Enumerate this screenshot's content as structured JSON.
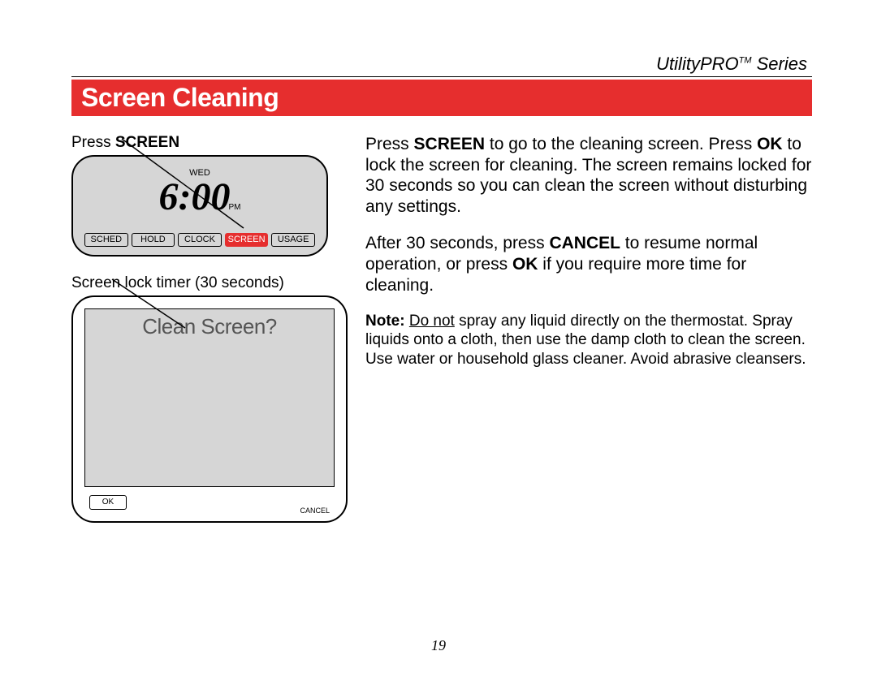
{
  "series": {
    "name": "UtilityPRO",
    "trademark": "TM",
    "suffix": " Series"
  },
  "title": "Screen Cleaning",
  "pageNumber": "19",
  "colors": {
    "accent": "#e62e2e",
    "lcd_bg": "#d6d6d6",
    "text": "#000000",
    "white": "#ffffff"
  },
  "left": {
    "caption1_prefix": "Press ",
    "caption1_bold": "SCREEN",
    "device_top": {
      "day": "WED",
      "time": "6:00",
      "period": "PM",
      "buttons": [
        "SCHED",
        "HOLD",
        "CLOCK",
        "SCREEN",
        "USAGE"
      ],
      "active_index": 3
    },
    "caption2": "Screen lock timer (30 seconds)",
    "device_bot": {
      "prompt": "Clean Screen?",
      "ok": "OK",
      "cancel": "CANCEL"
    }
  },
  "right": {
    "p1_parts": [
      {
        "t": "Press ",
        "b": false
      },
      {
        "t": "SCREEN",
        "b": true
      },
      {
        "t": " to go to the cleaning screen. Press ",
        "b": false
      },
      {
        "t": "OK",
        "b": true
      },
      {
        "t": " to lock the screen for cleaning. The screen remains locked for 30 seconds so you can clean the screen without disturbing any settings.",
        "b": false
      }
    ],
    "p2_parts": [
      {
        "t": "After 30 seconds, press ",
        "b": false
      },
      {
        "t": "CANCEL",
        "b": true
      },
      {
        "t": " to resume normal operation, or press ",
        "b": false
      },
      {
        "t": "OK",
        "b": true
      },
      {
        "t": " if you require more time for cleaning.",
        "b": false
      }
    ],
    "note": {
      "label": "Note:",
      "underline": "Do not",
      "rest": " spray any liquid directly on the thermostat. Spray liquids onto a cloth, then use the damp cloth to clean the screen. Use water or household glass cleaner. Avoid abrasive cleansers."
    }
  }
}
